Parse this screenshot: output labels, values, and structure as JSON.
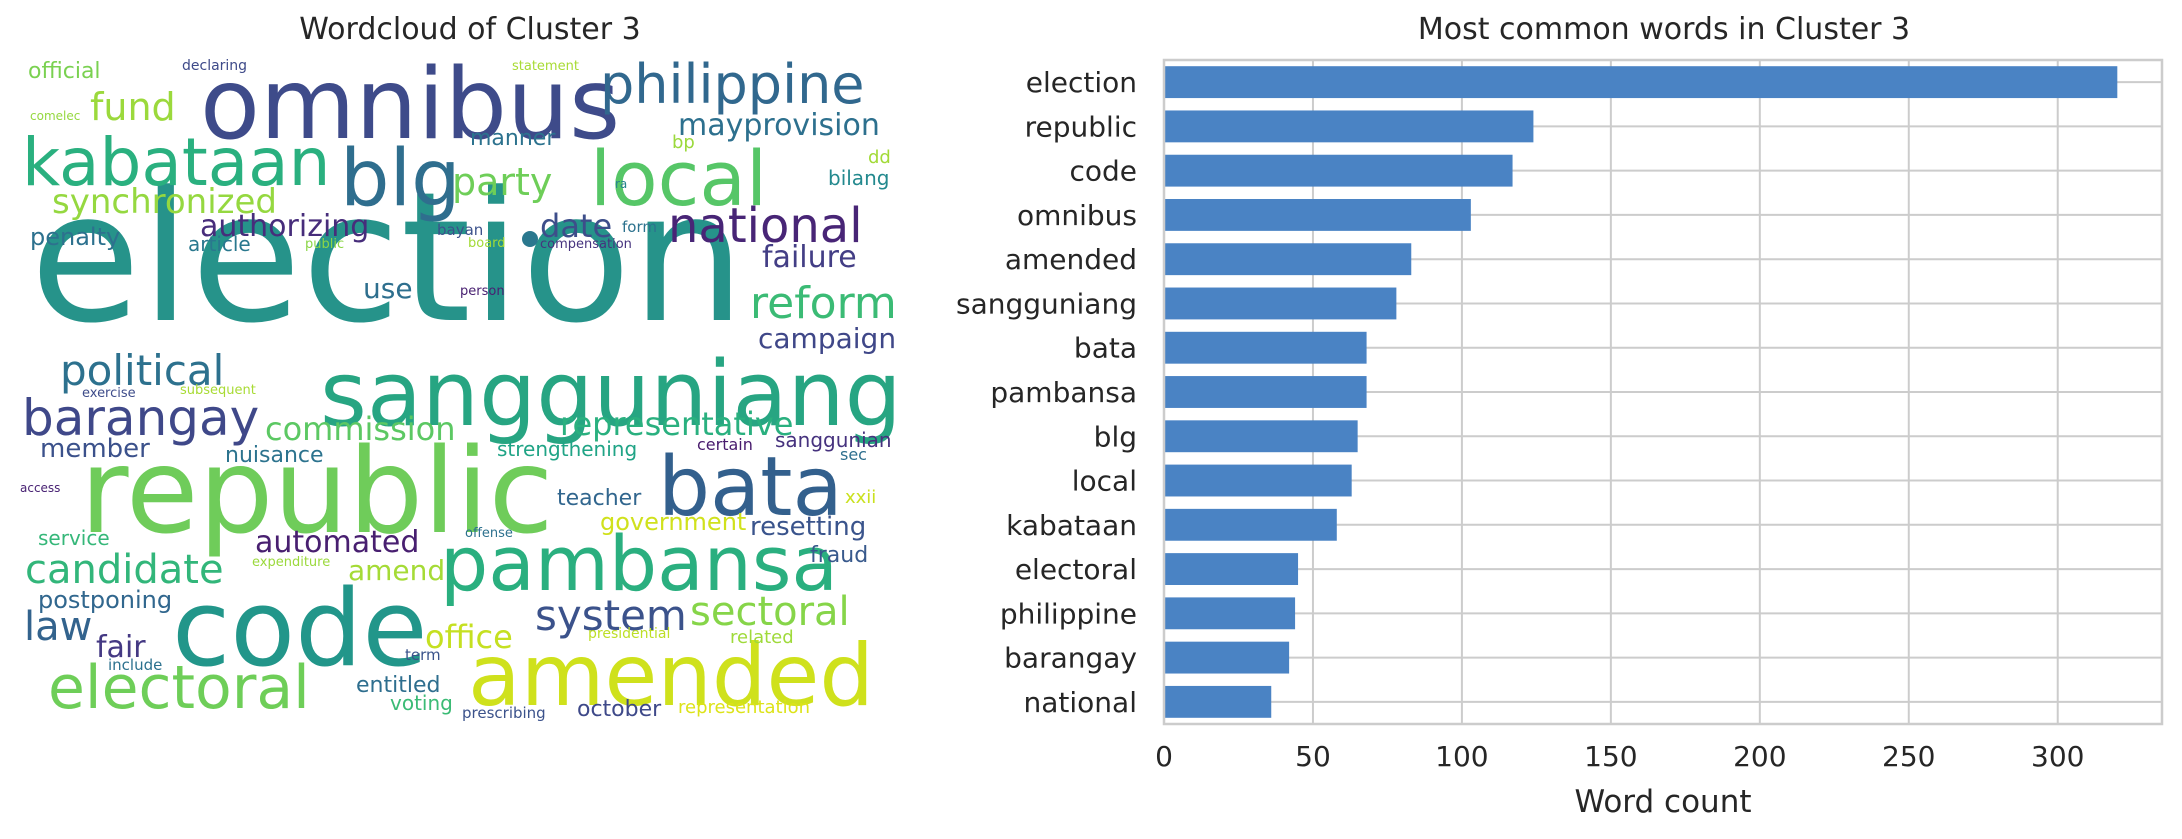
{
  "chart_data": [
    {
      "type": "wordcloud",
      "title": "Wordcloud of Cluster 3",
      "words": [
        {
          "text": "election",
          "color": "#26938a"
        },
        {
          "text": "republic",
          "color": "#6fcc5a"
        },
        {
          "text": "code",
          "color": "#22968a"
        },
        {
          "text": "omnibus",
          "color": "#3e4b8a"
        },
        {
          "text": "amended",
          "color": "#cfe11c"
        },
        {
          "text": "sangguniang",
          "color": "#27a582"
        },
        {
          "text": "pambansa",
          "color": "#2aaf7f"
        },
        {
          "text": "bata",
          "color": "#33608d"
        },
        {
          "text": "blg",
          "color": "#2f6e8e"
        },
        {
          "text": "local",
          "color": "#56c667"
        },
        {
          "text": "kabataan",
          "color": "#2ab07f"
        },
        {
          "text": "electoral",
          "color": "#6ece58"
        },
        {
          "text": "philippine",
          "color": "#31688e"
        },
        {
          "text": "barangay",
          "color": "#3f4889"
        },
        {
          "text": "national",
          "color": "#482576"
        },
        {
          "text": "reform",
          "color": "#3bbb75"
        },
        {
          "text": "political",
          "color": "#2d718e"
        },
        {
          "text": "system",
          "color": "#3b528b"
        },
        {
          "text": "sectoral",
          "color": "#86d549"
        },
        {
          "text": "candidate",
          "color": "#32b67a"
        },
        {
          "text": "party",
          "color": "#6ece58"
        },
        {
          "text": "synchronized",
          "color": "#95d840"
        },
        {
          "text": "fund",
          "color": "#9bd93c"
        },
        {
          "text": "representative",
          "color": "#2ab07f"
        },
        {
          "text": "commission",
          "color": "#5cc863"
        },
        {
          "text": "mayprovision",
          "color": "#2d708e"
        },
        {
          "text": "authorizing",
          "color": "#472d7b"
        },
        {
          "text": "failure",
          "color": "#433e85"
        },
        {
          "text": "campaign",
          "color": "#3f4788"
        },
        {
          "text": "automated",
          "color": "#481f70"
        },
        {
          "text": "law",
          "color": "#33638d"
        },
        {
          "text": "office",
          "color": "#c5e021"
        },
        {
          "text": "date",
          "color": "#3d4e8a"
        },
        {
          "text": "member",
          "color": "#3b518b"
        },
        {
          "text": "fair",
          "color": "#443983"
        },
        {
          "text": "use",
          "color": "#2e6f8e"
        },
        {
          "text": "postponing",
          "color": "#31678e"
        },
        {
          "text": "resetting",
          "color": "#3a548c"
        },
        {
          "text": "government",
          "color": "#d0e11c"
        },
        {
          "text": "amend",
          "color": "#a5db36"
        },
        {
          "text": "teacher",
          "color": "#31668e"
        },
        {
          "text": "penalty",
          "color": "#2d718e"
        },
        {
          "text": "nuisance",
          "color": "#2c738e"
        },
        {
          "text": "strengthening",
          "color": "#20a486"
        },
        {
          "text": "official",
          "color": "#7ad151"
        },
        {
          "text": "fraud",
          "color": "#38598c"
        },
        {
          "text": "manner",
          "color": "#2c728e"
        },
        {
          "text": "service",
          "color": "#35b779"
        },
        {
          "text": "article",
          "color": "#2a788e"
        },
        {
          "text": "october",
          "color": "#3e4989"
        },
        {
          "text": "entitled",
          "color": "#2e6e8e"
        },
        {
          "text": "voting",
          "color": "#3bbb75"
        },
        {
          "text": "related",
          "color": "#9fda3a"
        },
        {
          "text": "representation",
          "color": "#dde318"
        },
        {
          "text": "bilang",
          "color": "#23898e"
        },
        {
          "text": "sanggunian",
          "color": "#46327e"
        },
        {
          "text": "xxii",
          "color": "#cae11f"
        },
        {
          "text": "bp",
          "color": "#9bd93c"
        },
        {
          "text": "dd",
          "color": "#a2da37"
        },
        {
          "text": "certain",
          "color": "#481b6d"
        },
        {
          "text": "sec",
          "color": "#2e6f8e"
        },
        {
          "text": "prescribing",
          "color": "#3b528b"
        },
        {
          "text": "term",
          "color": "#3a538b"
        },
        {
          "text": "include",
          "color": "#2c718e"
        },
        {
          "text": "presidential",
          "color": "#bddf26"
        },
        {
          "text": "form",
          "color": "#2c728e"
        },
        {
          "text": "bayan",
          "color": "#3b518b"
        },
        {
          "text": "board",
          "color": "#a2da37"
        },
        {
          "text": "public",
          "color": "#8bd646"
        },
        {
          "text": "compensation",
          "color": "#46337e"
        },
        {
          "text": "person",
          "color": "#482071"
        },
        {
          "text": "exercise",
          "color": "#3e4c8a"
        },
        {
          "text": "subsequent",
          "color": "#a8db34"
        },
        {
          "text": "offense",
          "color": "#2d718e"
        },
        {
          "text": "expenditure",
          "color": "#9bd93c"
        },
        {
          "text": "declaring",
          "color": "#3e4a89"
        },
        {
          "text": "statement",
          "color": "#a8db34"
        },
        {
          "text": "comelec",
          "color": "#95d840"
        },
        {
          "text": "access",
          "color": "#482173"
        },
        {
          "text": "ra",
          "color": "#26828e"
        }
      ]
    },
    {
      "type": "bar",
      "orientation": "horizontal",
      "title": "Most common words in Cluster 3",
      "xlabel": "Word count",
      "ylabel": "",
      "xlim": [
        0,
        335
      ],
      "xticks": [
        0,
        50,
        100,
        150,
        200,
        250,
        300
      ],
      "grid": true,
      "bar_color": "#4a83c4",
      "categories": [
        "election",
        "republic",
        "code",
        "omnibus",
        "amended",
        "sangguniang",
        "bata",
        "pambansa",
        "blg",
        "local",
        "kabataan",
        "electoral",
        "philippine",
        "barangay",
        "national"
      ],
      "values": [
        320,
        124,
        117,
        103,
        83,
        78,
        68,
        68,
        65,
        63,
        58,
        45,
        44,
        42,
        36
      ]
    }
  ]
}
